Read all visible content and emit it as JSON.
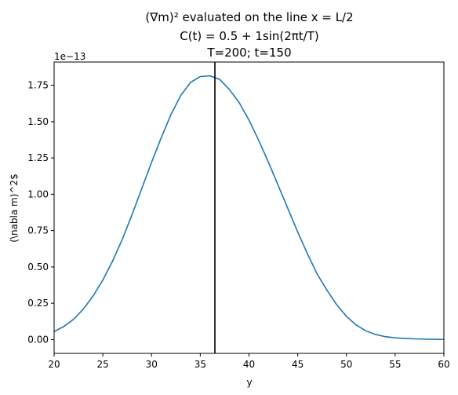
{
  "chart_data": {
    "type": "line",
    "title_lines": [
      "(∇m)² evaluated on the line x = L/2",
      "C(t) = 0.5 + 1sin(2πt/T)",
      "T=200; t=150"
    ],
    "xlabel": "y",
    "ylabel": "(\\nabla m)^2$",
    "y_offset_label": "1e−13",
    "xlim": [
      20,
      60
    ],
    "ylim": [
      -0.095,
      1.91
    ],
    "xticks": [
      20,
      25,
      30,
      35,
      40,
      45,
      50,
      55,
      60
    ],
    "xtick_labels": [
      "20",
      "25",
      "30",
      "35",
      "40",
      "45",
      "50",
      "55",
      "60"
    ],
    "yticks": [
      0.0,
      0.25,
      0.5,
      0.75,
      1.0,
      1.25,
      1.5,
      1.75
    ],
    "ytick_labels": [
      "0.00",
      "0.25",
      "0.50",
      "0.75",
      "1.00",
      "1.25",
      "1.50",
      "1.75"
    ],
    "grid": false,
    "vline_x": 36.5,
    "series": [
      {
        "color": "#1f77b4",
        "x": [
          20,
          21,
          22,
          23,
          24,
          25,
          26,
          27,
          28,
          29,
          30,
          31,
          32,
          33,
          34,
          35,
          36,
          37,
          38,
          39,
          40,
          41,
          42,
          43,
          44,
          45,
          46,
          47,
          48,
          49,
          50,
          51,
          52,
          53,
          54,
          55,
          56,
          57,
          58,
          59,
          60
        ],
        "values": [
          0.055,
          0.09,
          0.14,
          0.21,
          0.3,
          0.41,
          0.54,
          0.69,
          0.86,
          1.04,
          1.22,
          1.39,
          1.55,
          1.68,
          1.77,
          1.81,
          1.815,
          1.79,
          1.72,
          1.63,
          1.51,
          1.37,
          1.22,
          1.06,
          0.9,
          0.74,
          0.59,
          0.45,
          0.34,
          0.24,
          0.16,
          0.1,
          0.06,
          0.035,
          0.02,
          0.012,
          0.008,
          0.005,
          0.003,
          0.002,
          0.001
        ]
      }
    ],
    "vline_color": "#000000"
  }
}
